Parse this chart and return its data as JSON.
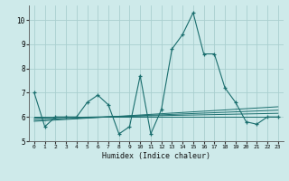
{
  "xlabel": "Humidex (Indice chaleur)",
  "ylabel": "",
  "bg_color": "#ceeaea",
  "grid_color": "#aacfcf",
  "line_color": "#1a6e6e",
  "xlim": [
    -0.5,
    23.5
  ],
  "ylim": [
    5.0,
    10.6
  ],
  "yticks": [
    5,
    6,
    7,
    8,
    9,
    10
  ],
  "xticks": [
    0,
    1,
    2,
    3,
    4,
    5,
    6,
    7,
    8,
    9,
    10,
    11,
    12,
    13,
    14,
    15,
    16,
    17,
    18,
    19,
    20,
    21,
    22,
    23
  ],
  "main_x": [
    0,
    1,
    2,
    3,
    4,
    5,
    6,
    7,
    8,
    9,
    10,
    11,
    12,
    13,
    14,
    15,
    16,
    17,
    18,
    19,
    20,
    21,
    22,
    23
  ],
  "main_y": [
    7.0,
    5.6,
    6.0,
    6.0,
    6.0,
    6.6,
    6.9,
    6.5,
    5.3,
    5.6,
    7.7,
    5.3,
    6.3,
    8.8,
    9.4,
    10.3,
    8.6,
    8.6,
    7.2,
    6.6,
    5.8,
    5.7,
    6.0,
    6.0
  ],
  "trend_lines": [
    {
      "x": [
        0,
        23
      ],
      "y": [
        6.0,
        6.0
      ]
    },
    {
      "x": [
        0,
        23
      ],
      "y": [
        5.95,
        6.15
      ]
    },
    {
      "x": [
        0,
        23
      ],
      "y": [
        5.88,
        6.28
      ]
    },
    {
      "x": [
        0,
        23
      ],
      "y": [
        5.82,
        6.42
      ]
    }
  ]
}
